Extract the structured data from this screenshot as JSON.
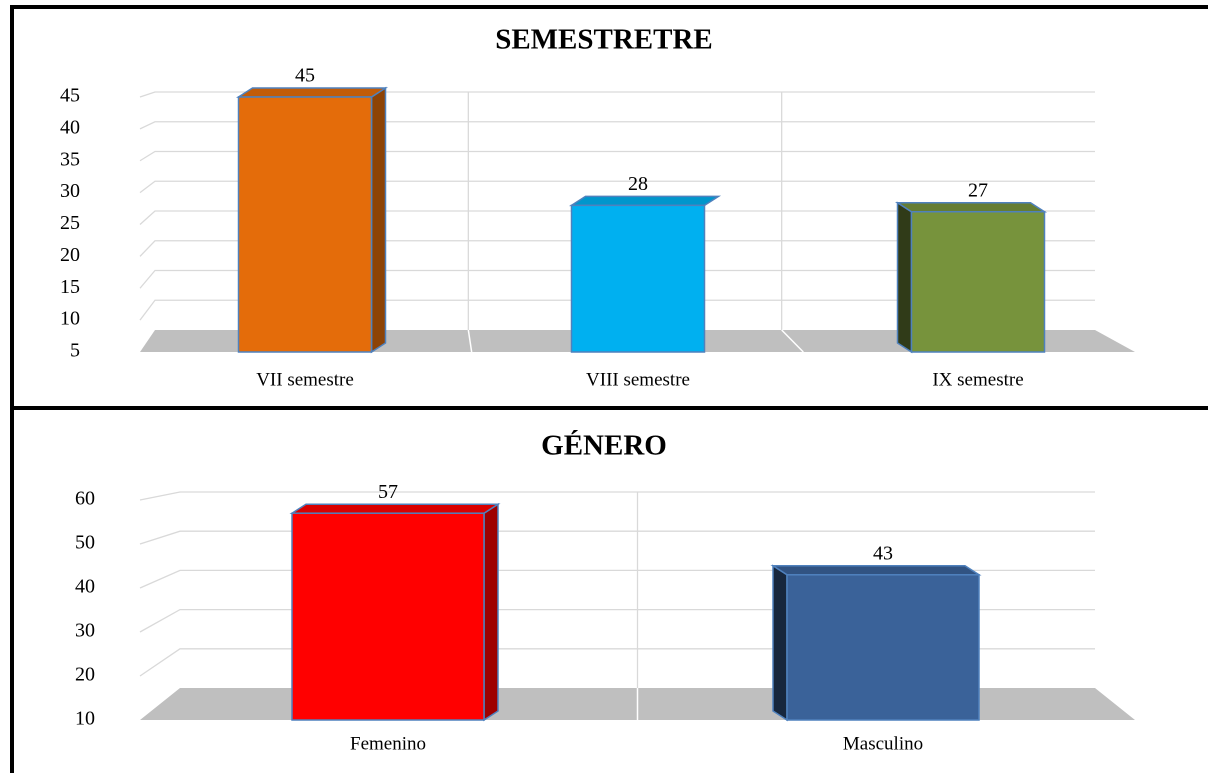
{
  "chart_data": [
    {
      "type": "bar3d",
      "title": "SEMESTRETRE",
      "categories": [
        "VII semestre",
        "VIII semestre",
        "IX semestre"
      ],
      "values": [
        45,
        28,
        27
      ],
      "colors": [
        "#e46c0a",
        "#00b0f0",
        "#77933c"
      ],
      "ylim": [
        5,
        45
      ],
      "yticks": [
        5,
        10,
        15,
        20,
        25,
        30,
        35,
        40,
        45
      ],
      "grid": true
    },
    {
      "type": "bar3d",
      "title": "GÉNERO",
      "categories": [
        "Femenino",
        "Masculino"
      ],
      "values": [
        57,
        43
      ],
      "colors": [
        "#ff0000",
        "#3a6299"
      ],
      "ylim": [
        10,
        60
      ],
      "yticks": [
        10,
        20,
        30,
        40,
        50,
        60
      ],
      "grid": true
    }
  ]
}
